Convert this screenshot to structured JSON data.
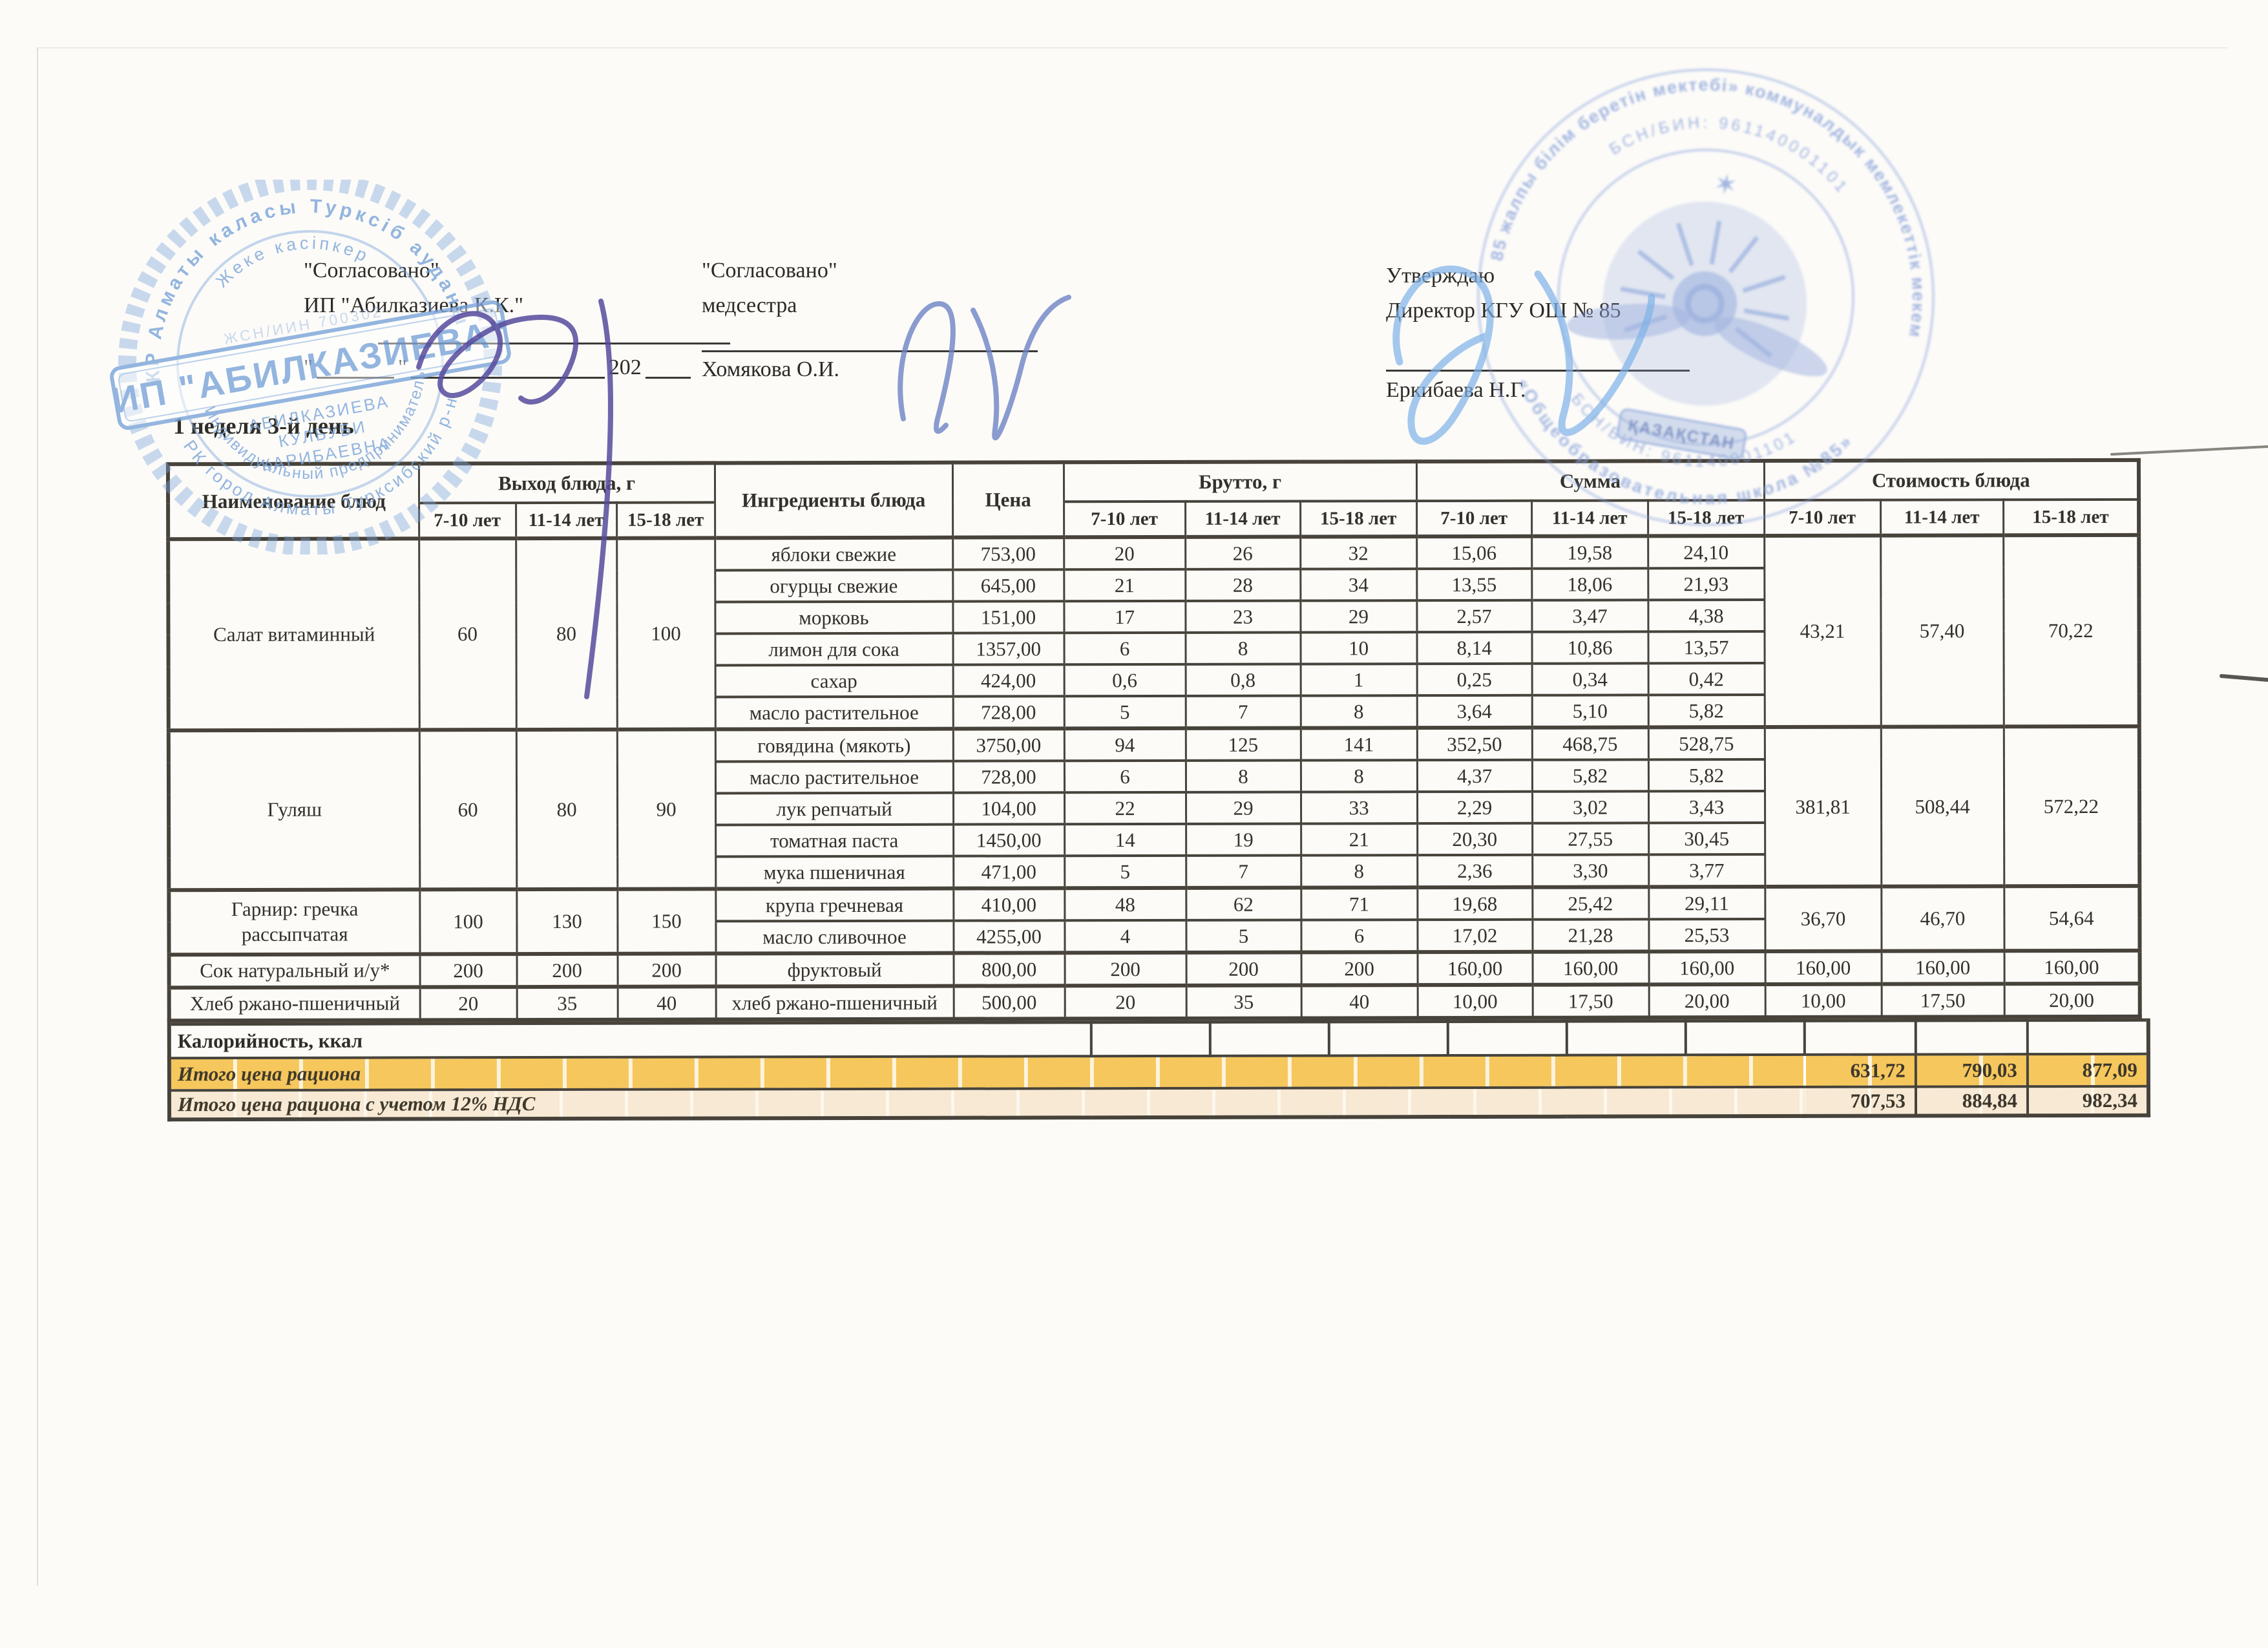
{
  "approvals": {
    "left": {
      "title": "\"Согласовано\"",
      "subtitle": "ИП \"Абилказиева К.К.\"",
      "date_quote": "\"",
      "date_year": "202"
    },
    "middle": {
      "title": "\"Согласовано\"",
      "subtitle": "медсестра",
      "signer": "Хомякова О.И."
    },
    "right": {
      "title": "Утверждаю",
      "subtitle": "Директор КГУ ОШ № 85",
      "signer": "Еркибаева Н.Г."
    }
  },
  "week_day_label": "1 неделя 3-й день",
  "stamps": {
    "left": {
      "arc_top": "КР Алматы каласы Турксiб ауданы",
      "arc_inner": "Жеке касiпкер",
      "id_line": "ЖСН/ИИН 700302",
      "center": "ИП \"АБИЛКАЗИЕВА\"",
      "person_line1": "АБИЛКАЗИЕВА",
      "person_line2": "КУЛБУБИ",
      "person_line3": "КАРИБАЕВНА",
      "arc_bottom_inner": "Индивидуальный предприниматель",
      "arc_bottom_outer": "РК город Алматы Турксибский р-н",
      "color": "#7aa4da"
    },
    "right": {
      "arc_top": "«№85 жалпы бiлiм беретiн мектебi» коммуналдык мемлекеттiк мекемесi",
      "arc_bottom": "«Общеобразовательная школа №85»",
      "arc_bin_top": "БСН/БИН: 961140001101",
      "arc_bin_bottom": "БСН/БИН: 961140001101",
      "banner": "ҚАЗАҚСТАН",
      "color": "#8aa3da"
    }
  },
  "table": {
    "headers": {
      "name": "Наименование блюд",
      "output_group": "Выход блюда, г",
      "ingredients": "Ингредиенты блюда",
      "price": "Цена",
      "brutto_group": "Брутто, г",
      "sum_group": "Сумма",
      "cost_group": "Стоимость блюда",
      "ages": [
        "7-10 лет",
        "11-14 лет",
        "15-18 лет"
      ]
    },
    "dishes": [
      {
        "name": "Салат витаминный",
        "output": [
          "60",
          "80",
          "100"
        ],
        "cost": [
          "43,21",
          "57,40",
          "70,22"
        ],
        "ingredients": [
          {
            "n": "яблоки свежие",
            "price": "753,00",
            "brutto": [
              "20",
              "26",
              "32"
            ],
            "sum": [
              "15,06",
              "19,58",
              "24,10"
            ]
          },
          {
            "n": "огурцы свежие",
            "price": "645,00",
            "brutto": [
              "21",
              "28",
              "34"
            ],
            "sum": [
              "13,55",
              "18,06",
              "21,93"
            ]
          },
          {
            "n": "морковь",
            "price": "151,00",
            "brutto": [
              "17",
              "23",
              "29"
            ],
            "sum": [
              "2,57",
              "3,47",
              "4,38"
            ]
          },
          {
            "n": "лимон для сока",
            "price": "1357,00",
            "brutto": [
              "6",
              "8",
              "10"
            ],
            "sum": [
              "8,14",
              "10,86",
              "13,57"
            ]
          },
          {
            "n": "сахар",
            "price": "424,00",
            "brutto": [
              "0,6",
              "0,8",
              "1"
            ],
            "sum": [
              "0,25",
              "0,34",
              "0,42"
            ]
          },
          {
            "n": "масло растительное",
            "price": "728,00",
            "brutto": [
              "5",
              "7",
              "8"
            ],
            "sum": [
              "3,64",
              "5,10",
              "5,82"
            ]
          }
        ]
      },
      {
        "name": "Гуляш",
        "output": [
          "60",
          "80",
          "90"
        ],
        "cost": [
          "381,81",
          "508,44",
          "572,22"
        ],
        "ingredients": [
          {
            "n": "говядина (мякоть)",
            "price": "3750,00",
            "brutto": [
              "94",
              "125",
              "141"
            ],
            "sum": [
              "352,50",
              "468,75",
              "528,75"
            ]
          },
          {
            "n": "масло растительное",
            "price": "728,00",
            "brutto": [
              "6",
              "8",
              "8"
            ],
            "sum": [
              "4,37",
              "5,82",
              "5,82"
            ]
          },
          {
            "n": "лук репчатый",
            "price": "104,00",
            "brutto": [
              "22",
              "29",
              "33"
            ],
            "sum": [
              "2,29",
              "3,02",
              "3,43"
            ]
          },
          {
            "n": "томатная паста",
            "price": "1450,00",
            "brutto": [
              "14",
              "19",
              "21"
            ],
            "sum": [
              "20,30",
              "27,55",
              "30,45"
            ]
          },
          {
            "n": "мука пшеничная",
            "price": "471,00",
            "brutto": [
              "5",
              "7",
              "8"
            ],
            "sum": [
              "2,36",
              "3,30",
              "3,77"
            ]
          }
        ]
      },
      {
        "name": "Гарнир: гречка рассыпчатая",
        "output": [
          "100",
          "130",
          "150"
        ],
        "cost": [
          "36,70",
          "46,70",
          "54,64"
        ],
        "ingredients": [
          {
            "n": "крупа гречневая",
            "price": "410,00",
            "brutto": [
              "48",
              "62",
              "71"
            ],
            "sum": [
              "19,68",
              "25,42",
              "29,11"
            ]
          },
          {
            "n": "масло сливочное",
            "price": "4255,00",
            "brutto": [
              "4",
              "5",
              "6"
            ],
            "sum": [
              "17,02",
              "21,28",
              "25,53"
            ]
          }
        ]
      },
      {
        "name": "Сок натуральный и/у*",
        "output": [
          "200",
          "200",
          "200"
        ],
        "cost": [
          "160,00",
          "160,00",
          "160,00"
        ],
        "ingredients": [
          {
            "n": "фруктовый",
            "price": "800,00",
            "brutto": [
              "200",
              "200",
              "200"
            ],
            "sum": [
              "160,00",
              "160,00",
              "160,00"
            ]
          }
        ]
      },
      {
        "name": "Хлеб ржано-пшеничный",
        "output": [
          "20",
          "35",
          "40"
        ],
        "cost": [
          "10,00",
          "17,50",
          "20,00"
        ],
        "ingredients": [
          {
            "n": "хлеб ржано-пшеничный",
            "price": "500,00",
            "brutto": [
              "20",
              "35",
              "40"
            ],
            "sum": [
              "10,00",
              "17,50",
              "20,00"
            ]
          }
        ]
      }
    ],
    "footer": {
      "calories_label": "Калорийность, ккал",
      "total_label": "Итого цена рациона",
      "total_values": [
        "631,72",
        "790,03",
        "877,09"
      ],
      "total_vat_label": "Итого цена рациона с учетом 12% НДС",
      "total_vat_values": [
        "707,53",
        "884,84",
        "982,34"
      ]
    }
  },
  "colors": {
    "accent_yellow": "#f5c75c",
    "accent_cream": "#f7e9d4",
    "stamp_blue": "#7aa4da",
    "signature_purple": "#564a9c",
    "signature_blue": "#6d83c4",
    "signature_light_blue": "#7fb2e8",
    "table_border": "#47433b"
  }
}
